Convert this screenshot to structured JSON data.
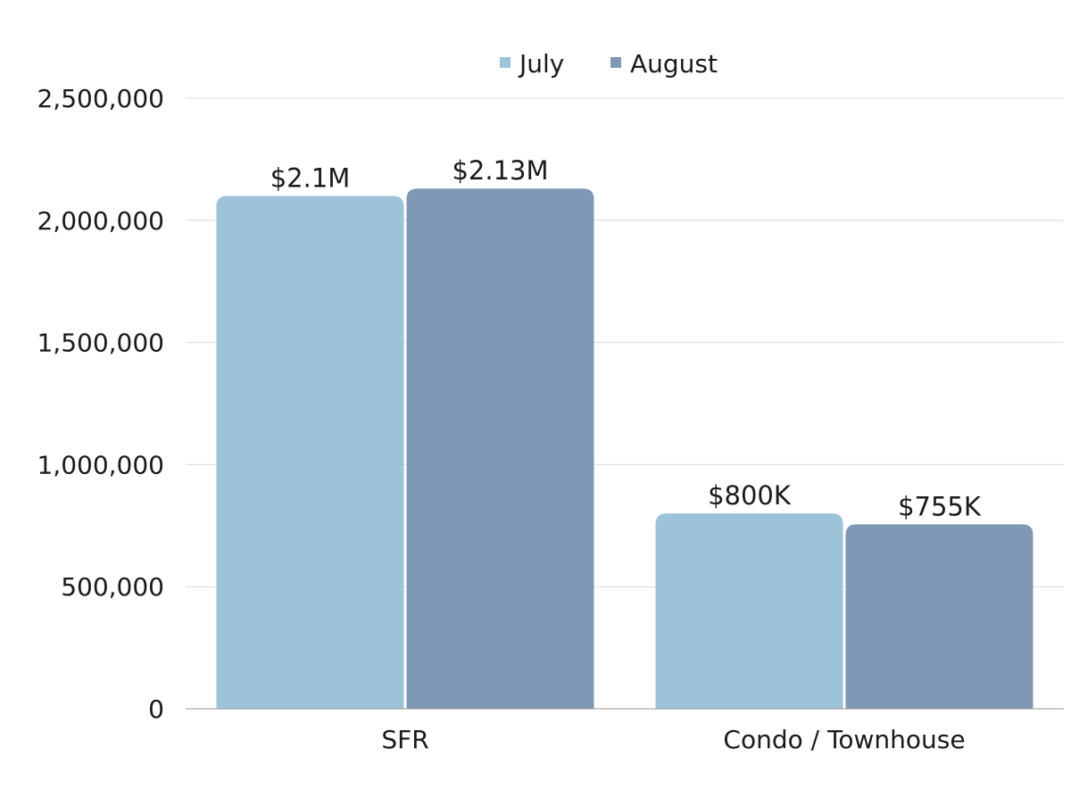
{
  "chart_data": {
    "type": "bar",
    "title": "",
    "xlabel": "",
    "ylabel": "",
    "categories": [
      "SFR",
      "Condo / Townhouse"
    ],
    "series": [
      {
        "name": "July",
        "color": "#9dc3d9",
        "values": [
          2100000,
          800000
        ],
        "labels": [
          "$2.1M",
          "$800K"
        ]
      },
      {
        "name": "August",
        "color": "#7f98b5",
        "values": [
          2130000,
          755000
        ],
        "labels": [
          "$2.13M",
          "$755K"
        ]
      }
    ],
    "ylim": [
      0,
      2500000
    ],
    "yticks": [
      0,
      500000,
      1000000,
      1500000,
      2000000,
      2500000
    ],
    "ytick_labels": [
      "0",
      "500,000",
      "1,000,000",
      "1,500,000",
      "2,000,000",
      "2,500,000"
    ],
    "grid": true,
    "legend_position": "top-center"
  }
}
